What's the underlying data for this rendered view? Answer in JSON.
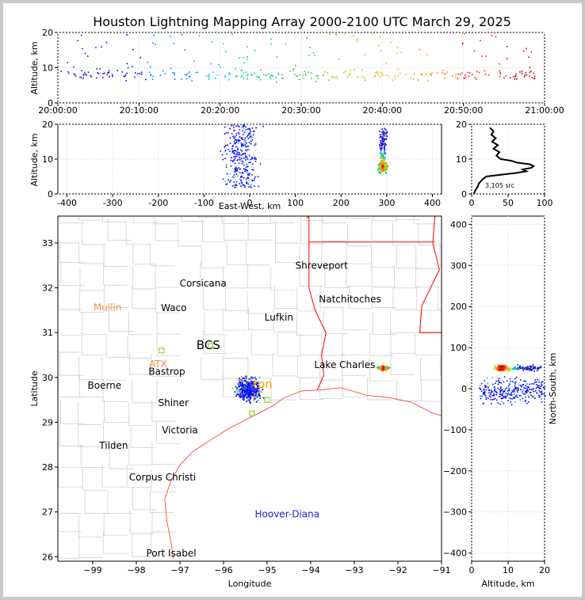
{
  "colors": {
    "border": "#c8c8c8",
    "county_lines": "#cfcfcf",
    "state_lines": "#ff0000",
    "coast": "#ff3030",
    "grid": "#e6e6e6",
    "lma_station": "#ff8c3a",
    "other_station": "#2020e0",
    "city": "#000000"
  },
  "chart_data": [
    {
      "type": "scatter",
      "panel": "time-altitude",
      "title": "Houston Lightning Mapping Array 2000-2100 UTC March 29, 2025",
      "xlabel": "",
      "ylabel": "Altitude, km",
      "xticks": [
        "20:00:00",
        "20:10:00",
        "20:20:00",
        "20:30:00",
        "20:40:00",
        "20:50:00",
        "21:00:00"
      ],
      "xlim_minutes": [
        0,
        60
      ],
      "ylim": [
        0,
        20
      ],
      "yticks": [
        0,
        10,
        20
      ],
      "grid": true,
      "color_encoding": "time",
      "sources_desc": "scattered sources mostly between 5 and 10 km, sparse up to 20 km, throughout the hour"
    },
    {
      "type": "scatter",
      "panel": "east-west-altitude",
      "xlabel": "East-West, km",
      "ylabel": "Altitude, km",
      "xlim": [
        -420,
        420
      ],
      "xticks": [
        -400,
        -300,
        -200,
        -100,
        0,
        100,
        200,
        300,
        400
      ],
      "ylim": [
        0,
        20
      ],
      "yticks": [
        0,
        10,
        20
      ],
      "grid": true,
      "clusters": [
        {
          "x_center": -20,
          "x_spread": 50,
          "alt_min": 2,
          "alt_max": 20
        },
        {
          "x_center": 290,
          "x_spread": 12,
          "alt_min": 6,
          "alt_max": 19,
          "core_alt": 8
        }
      ]
    },
    {
      "type": "line",
      "panel": "altitude-histogram",
      "xlim": [
        0,
        100
      ],
      "xticks": [
        0,
        50,
        100
      ],
      "ylim": [
        0,
        20
      ],
      "yticks": [
        0,
        10,
        20
      ],
      "annotation": "3,105 src",
      "profile": {
        "alt": [
          0,
          1,
          2,
          3,
          4,
          5,
          5.5,
          6,
          6.5,
          7,
          7.5,
          8,
          8.5,
          9,
          9.5,
          10,
          11,
          12,
          13,
          14,
          15,
          16,
          17,
          18,
          19
        ],
        "count": [
          3,
          5,
          8,
          10,
          14,
          20,
          40,
          60,
          75,
          70,
          82,
          85,
          80,
          62,
          55,
          40,
          34,
          38,
          30,
          36,
          28,
          33,
          27,
          30,
          25
        ]
      }
    },
    {
      "type": "scatter",
      "panel": "plan-view-map",
      "xlabel": "Longitude",
      "ylabel": "Latitude",
      "xlim": [
        -99.8,
        -91
      ],
      "ylim": [
        25.9,
        33.6
      ],
      "xticks": [
        -99,
        -98,
        -97,
        -96,
        -95,
        -94,
        -93,
        -92,
        -91
      ],
      "yticks": [
        26,
        27,
        28,
        29,
        30,
        31,
        32,
        33
      ],
      "clusters": [
        {
          "lon": -95.45,
          "lat": 29.75,
          "spread_lon": 0.35,
          "spread_lat": 0.3
        },
        {
          "lon": -92.35,
          "lat": 30.22,
          "spread_lon": 0.15,
          "spread_lat": 0.06
        }
      ],
      "labels": [
        {
          "text": "Shreveport",
          "lon": -93.75,
          "lat": 32.5,
          "kind": "city"
        },
        {
          "text": "Corsicana",
          "lon": -96.47,
          "lat": 32.1,
          "kind": "city"
        },
        {
          "text": "Natchitoches",
          "lon": -93.1,
          "lat": 31.75,
          "kind": "city"
        },
        {
          "text": "Mullin",
          "lon": -98.66,
          "lat": 31.56,
          "kind": "lma"
        },
        {
          "text": "Waco",
          "lon": -97.14,
          "lat": 31.55,
          "kind": "city"
        },
        {
          "text": "Lufkin",
          "lon": -94.73,
          "lat": 31.34,
          "kind": "city"
        },
        {
          "text": "BCS",
          "lon": -96.35,
          "lat": 30.7,
          "kind": "city"
        },
        {
          "text": "ATX",
          "lon": -97.5,
          "lat": 30.3,
          "kind": "lma"
        },
        {
          "text": "Bastrop",
          "lon": -97.3,
          "lat": 30.13,
          "kind": "city"
        },
        {
          "text": "Lake Charles",
          "lon": -93.22,
          "lat": 30.28,
          "kind": "city"
        },
        {
          "text": "Boerne",
          "lon": -98.73,
          "lat": 29.82,
          "kind": "city"
        },
        {
          "text": "ton",
          "lon": -95.1,
          "lat": 29.83,
          "kind": "hou"
        },
        {
          "text": "Shiner",
          "lon": -97.15,
          "lat": 29.43,
          "kind": "city"
        },
        {
          "text": "Victoria",
          "lon": -97.0,
          "lat": 28.82,
          "kind": "city"
        },
        {
          "text": "Tilden",
          "lon": -98.52,
          "lat": 28.48,
          "kind": "city"
        },
        {
          "text": "Corpus Christi",
          "lon": -97.4,
          "lat": 27.77,
          "kind": "city"
        },
        {
          "text": "Hoover-Diana",
          "lon": -94.54,
          "lat": 26.95,
          "kind": "platform"
        },
        {
          "text": "Port Isabel",
          "lon": -97.2,
          "lat": 26.08,
          "kind": "city"
        }
      ]
    },
    {
      "type": "scatter",
      "panel": "altitude-north-south",
      "xlabel": "Altitude, km",
      "ylabel": "North-South, km",
      "xlim": [
        0,
        20
      ],
      "xticks": [
        0,
        10,
        20
      ],
      "ylim": [
        -420,
        420
      ],
      "yticks": [
        -400,
        -300,
        -200,
        -100,
        0,
        100,
        200,
        300,
        400
      ],
      "clusters": [
        {
          "ns_center": -5,
          "ns_spread": 40,
          "alt_min": 2,
          "alt_max": 20
        },
        {
          "ns_center": 52,
          "ns_spread": 10,
          "alt_min": 6,
          "alt_max": 19,
          "core_alt": 8
        }
      ]
    }
  ]
}
